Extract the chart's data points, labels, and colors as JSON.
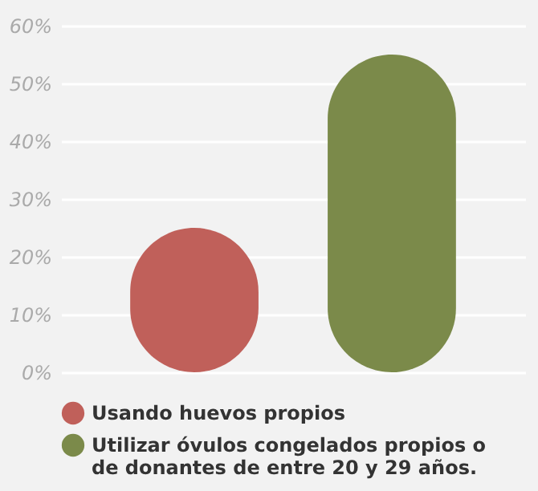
{
  "chart_data": {
    "type": "bar",
    "categories": [
      null,
      null
    ],
    "series": [
      {
        "name": "Usando huevos propios",
        "color": "#c0605a",
        "values": [
          25,
          null
        ]
      },
      {
        "name": "Utilizar óvulos congelados propios o de donantes de entre 20 y 29 años.",
        "color": "#7b8a4a",
        "values": [
          null,
          55
        ]
      }
    ],
    "ylim": [
      0,
      60
    ],
    "yticks": [
      {
        "value": 0,
        "label": "0%"
      },
      {
        "value": 10,
        "label": "10%"
      },
      {
        "value": 20,
        "label": "20%"
      },
      {
        "value": 30,
        "label": "30%"
      },
      {
        "value": 40,
        "label": "40%"
      },
      {
        "value": 50,
        "label": "50%"
      },
      {
        "value": 60,
        "label": "60%"
      }
    ],
    "grid": "y",
    "legend": "bottom",
    "tick_labels": "y"
  }
}
